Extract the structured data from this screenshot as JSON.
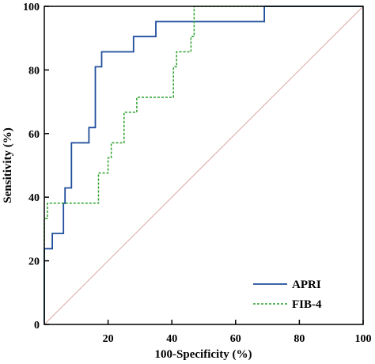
{
  "chart_data": {
    "type": "line",
    "xlabel": "100-Specificity (%)",
    "ylabel": "Sensitivity (%)",
    "xlim": [
      0,
      100
    ],
    "ylim": [
      0,
      100
    ],
    "xticks": [
      "20",
      "40",
      "60",
      "80",
      "100"
    ],
    "yticks": [
      "0",
      "20",
      "40",
      "60",
      "80",
      "100"
    ],
    "legend_position": "bottom-right",
    "grid": false,
    "series": [
      {
        "name": "APRI",
        "color": "#1f4e9c",
        "style": "solid",
        "x": [
          0,
          0,
          2.5,
          2.5,
          6,
          6,
          6.5,
          6.5,
          8.5,
          8.5,
          14,
          14,
          16,
          16,
          18,
          18,
          28,
          28,
          35,
          35,
          69,
          69,
          100
        ],
        "y": [
          0,
          23.8,
          23.8,
          28.6,
          28.6,
          38.1,
          38.1,
          42.9,
          42.9,
          57.1,
          57.1,
          61.9,
          61.9,
          81,
          81,
          85.7,
          85.7,
          90.5,
          90.5,
          95.2,
          95.2,
          100,
          100
        ]
      },
      {
        "name": "FIB-4",
        "color": "#2ca02c",
        "style": "dashed",
        "x": [
          0,
          0,
          1,
          1,
          17,
          17,
          20,
          20,
          21,
          21,
          22,
          22,
          25,
          25,
          29,
          29,
          40.5,
          40.5,
          41.5,
          41.5,
          46,
          46,
          47,
          47,
          100
        ],
        "y": [
          0,
          33.3,
          33.3,
          38.1,
          38.1,
          47.6,
          47.6,
          52.4,
          52.4,
          57.1,
          57.1,
          57.1,
          57.1,
          66.7,
          66.7,
          71.4,
          71.4,
          81,
          81,
          85.7,
          85.7,
          90.5,
          90.5,
          100,
          100
        ]
      },
      {
        "name": "",
        "color": "#d9a8a0",
        "style": "solid",
        "x": [
          0,
          100
        ],
        "y": [
          0,
          100
        ]
      }
    ],
    "legend": [
      {
        "label": "APRI",
        "color": "#1f4e9c",
        "style": "solid"
      },
      {
        "label": "FIB-4",
        "color": "#2ca02c",
        "style": "dashed"
      }
    ]
  }
}
